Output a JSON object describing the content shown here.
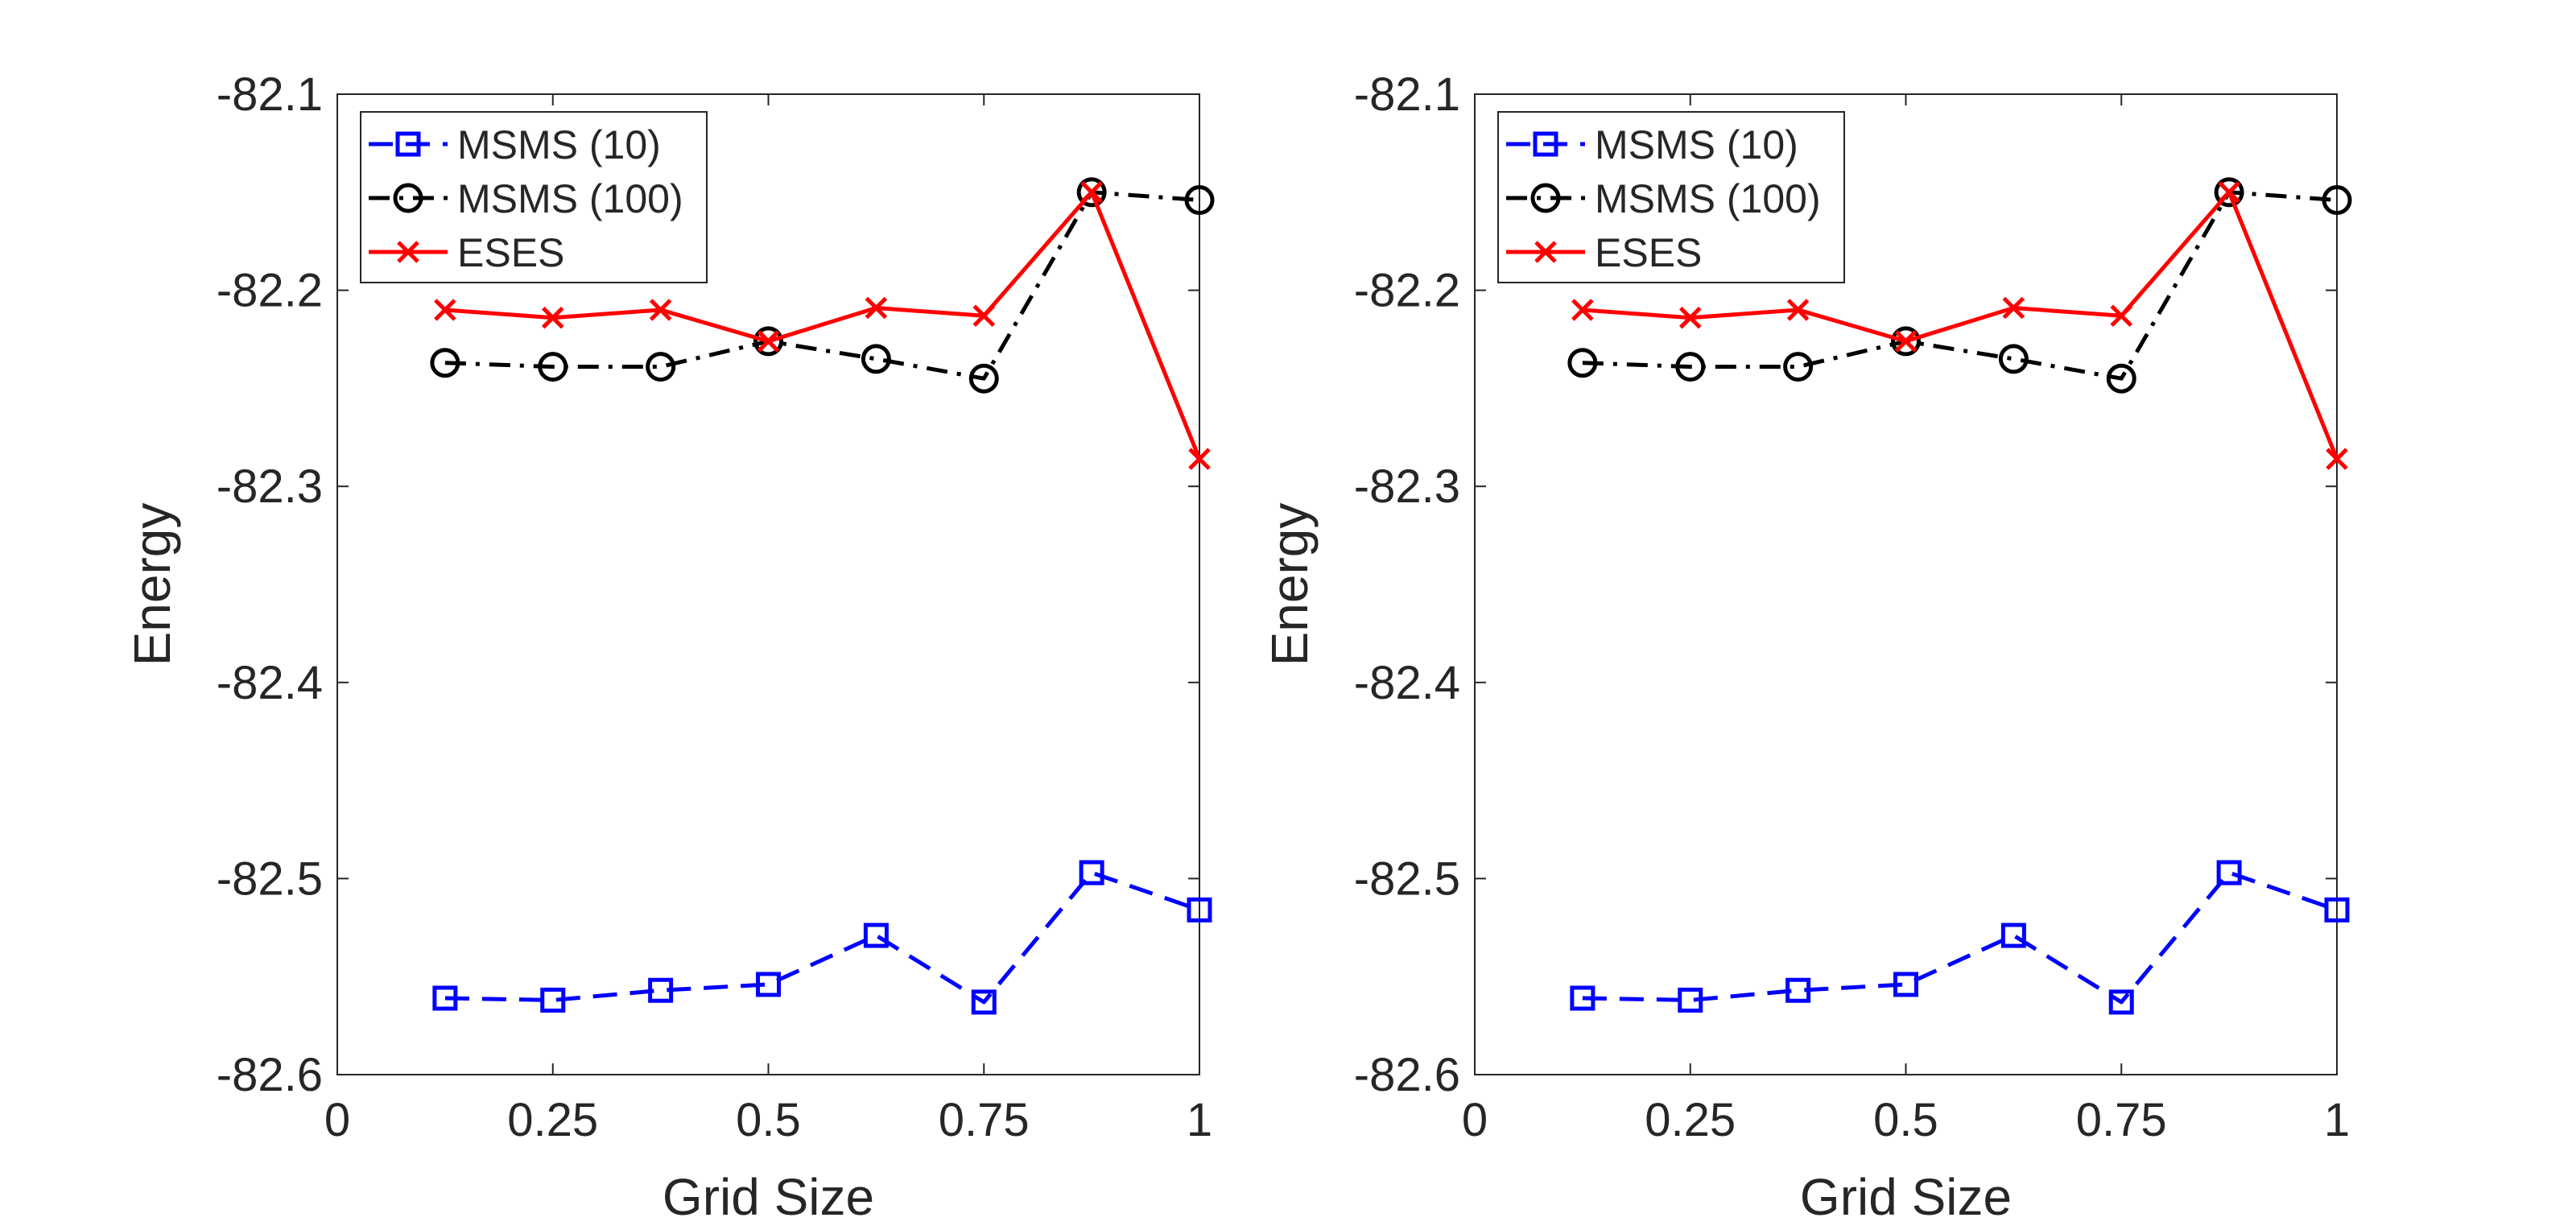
{
  "chart_data": [
    {
      "type": "line",
      "xlabel": "Grid Size",
      "ylabel": "Energy",
      "xlim": [
        0,
        1
      ],
      "ylim": [
        -82.6,
        -82.1
      ],
      "xticks": [
        0,
        0.25,
        0.5,
        0.75,
        1
      ],
      "xtick_labels": [
        "0",
        "0.25",
        "0.5",
        "0.75",
        "1"
      ],
      "yticks": [
        -82.6,
        -82.5,
        -82.4,
        -82.3,
        -82.2,
        -82.1
      ],
      "ytick_labels": [
        "-82.6",
        "-82.5",
        "-82.4",
        "-82.3",
        "-82.2",
        "-82.1"
      ],
      "legend_position": "top-left",
      "grid": false,
      "x": [
        0.125,
        0.25,
        0.375,
        0.5,
        0.625,
        0.75,
        0.875,
        1.0
      ],
      "series": [
        {
          "name": "MSMS (10)",
          "color": "#0000ff",
          "line": "dashed",
          "marker": "square",
          "values": [
            -82.561,
            -82.562,
            -82.557,
            -82.554,
            -82.529,
            -82.563,
            -82.497,
            -82.516
          ]
        },
        {
          "name": "MSMS (100)",
          "color": "#000000",
          "line": "dash-dot",
          "marker": "circle",
          "values": [
            -82.237,
            -82.239,
            -82.239,
            -82.226,
            -82.235,
            -82.245,
            -82.15,
            -82.154
          ]
        },
        {
          "name": "ESES",
          "color": "#ff0000",
          "line": "solid",
          "marker": "x",
          "values": [
            -82.21,
            -82.214,
            -82.21,
            -82.226,
            -82.209,
            -82.213,
            -82.15,
            -82.286
          ]
        }
      ]
    },
    {
      "type": "line",
      "xlabel": "Grid Size",
      "ylabel": "Energy",
      "xlim": [
        0,
        1
      ],
      "ylim": [
        -82.6,
        -82.1
      ],
      "xticks": [
        0,
        0.25,
        0.5,
        0.75,
        1
      ],
      "xtick_labels": [
        "0",
        "0.25",
        "0.5",
        "0.75",
        "1"
      ],
      "yticks": [
        -82.6,
        -82.5,
        -82.4,
        -82.3,
        -82.2,
        -82.1
      ],
      "ytick_labels": [
        "-82.6",
        "-82.5",
        "-82.4",
        "-82.3",
        "-82.2",
        "-82.1"
      ],
      "legend_position": "top-left",
      "grid": false,
      "x": [
        0.125,
        0.25,
        0.375,
        0.5,
        0.625,
        0.75,
        0.875,
        1.0
      ],
      "series": [
        {
          "name": "MSMS (10)",
          "color": "#0000ff",
          "line": "dashed",
          "marker": "square",
          "values": [
            -82.561,
            -82.562,
            -82.557,
            -82.554,
            -82.529,
            -82.563,
            -82.497,
            -82.516
          ]
        },
        {
          "name": "MSMS (100)",
          "color": "#000000",
          "line": "dash-dot",
          "marker": "circle",
          "values": [
            -82.237,
            -82.239,
            -82.239,
            -82.226,
            -82.235,
            -82.245,
            -82.15,
            -82.154
          ]
        },
        {
          "name": "ESES",
          "color": "#ff0000",
          "line": "solid",
          "marker": "x",
          "values": [
            -82.21,
            -82.214,
            -82.21,
            -82.226,
            -82.209,
            -82.213,
            -82.15,
            -82.286
          ]
        }
      ]
    }
  ]
}
